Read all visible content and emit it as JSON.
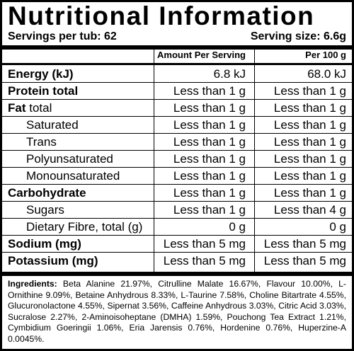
{
  "title": "Nutritional Information",
  "servings_per_tub": "Servings per tub: 62",
  "serving_size": "Serving size: 6.6g",
  "headers": {
    "per_serving": "Amount Per Serving",
    "per_100g": "Per 100 g"
  },
  "rows": [
    {
      "name": "Energy (kJ)",
      "name_bold": "Energy (kJ)",
      "name_rest": "",
      "bold": true,
      "indent": false,
      "per_serving": "6.8 kJ",
      "per_100g": "68.0 kJ"
    },
    {
      "name": "Protein total",
      "name_bold": "Protein total",
      "name_rest": "",
      "bold": true,
      "indent": false,
      "per_serving": "Less than 1 g",
      "per_100g": "Less than 1 g"
    },
    {
      "name": "Fat total",
      "name_bold": "Fat",
      "name_rest": " total",
      "bold": true,
      "indent": false,
      "per_serving": "Less than 1 g",
      "per_100g": "Less than 1 g"
    },
    {
      "name": "Saturated",
      "name_bold": "",
      "name_rest": "Saturated",
      "bold": false,
      "indent": true,
      "per_serving": "Less than 1 g",
      "per_100g": "Less than 1 g"
    },
    {
      "name": "Trans",
      "name_bold": "",
      "name_rest": "Trans",
      "bold": false,
      "indent": true,
      "per_serving": "Less than 1 g",
      "per_100g": "Less than 1 g"
    },
    {
      "name": "Polyunsaturated",
      "name_bold": "",
      "name_rest": "Polyunsaturated",
      "bold": false,
      "indent": true,
      "per_serving": "Less than 1 g",
      "per_100g": "Less than 1 g"
    },
    {
      "name": "Monounsaturated",
      "name_bold": "",
      "name_rest": "Monounsaturated",
      "bold": false,
      "indent": true,
      "per_serving": "Less than 1 g",
      "per_100g": "Less than 1 g"
    },
    {
      "name": "Carbohydrate",
      "name_bold": "Carbohydrate",
      "name_rest": "",
      "bold": true,
      "indent": false,
      "per_serving": "Less than 1 g",
      "per_100g": "Less than 1 g"
    },
    {
      "name": "Sugars",
      "name_bold": "",
      "name_rest": "Sugars",
      "bold": false,
      "indent": true,
      "per_serving": "Less than 1 g",
      "per_100g": "Less than 4 g"
    },
    {
      "name": "Dietary Fibre, total (g)",
      "name_bold": "",
      "name_rest": "Dietary Fibre, total (g)",
      "bold": false,
      "indent": true,
      "per_serving": "0 g",
      "per_100g": "0 g"
    },
    {
      "name": "Sodium (mg)",
      "name_bold": "Sodium (mg)",
      "name_rest": "",
      "bold": true,
      "indent": false,
      "per_serving": "Less than 5 mg",
      "per_100g": "Less than 5 mg"
    },
    {
      "name": "Potassium (mg)",
      "name_bold": "Potassium (mg)",
      "name_rest": "",
      "bold": true,
      "indent": false,
      "per_serving": "Less than 5 mg",
      "per_100g": "Less than 5 mg"
    }
  ],
  "ingredients": {
    "label": "Ingredients:",
    "text": " Beta Alanine 21.97%, Citrulline Malate 16.67%, Flavour 10.00%, L-Ornithine 9.09%, Betaine Anhydrous 8.33%, L-Taurine 7.58%, Choline Bitartrate 4.55%, Glucuronolactone 4.55%, Sipernat 3.56%, Caffeine Anhydrous 3.03%, Citric Acid 3.03%, Sucralose 2.27%, 2-Aminoisoheptane (DMHA) 1.59%, Pouchong Tea Extract 1.21%, Cymbidium Goeringii 1.06%, Eria Jarensis 0.76%, Hordenine 0.76%, Huperzine-A 0.0045%."
  }
}
